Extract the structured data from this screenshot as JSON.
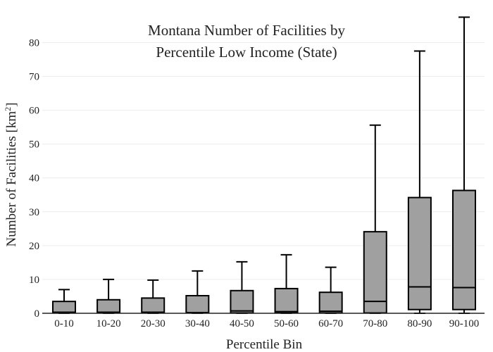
{
  "chart_data": {
    "type": "box",
    "title_lines": [
      "Montana Number of Facilities by",
      "Percentile Low Income (State)"
    ],
    "xlabel": "Percentile Bin",
    "ylabel_main": "Number of Facilities  [km",
    "ylabel_sup": "2",
    "ylabel_end": "]",
    "ylim": [
      0,
      88
    ],
    "yticks": [
      0,
      10,
      20,
      30,
      40,
      50,
      60,
      70,
      80
    ],
    "grid": true,
    "box_color": "#a0a0a0",
    "categories": [
      "0-10",
      "10-20",
      "20-30",
      "30-40",
      "40-50",
      "50-60",
      "60-70",
      "70-80",
      "80-90",
      "90-100"
    ],
    "boxes": [
      {
        "min": 0,
        "q1": 0.1,
        "median": 0.3,
        "q3": 3.5,
        "max": 7.0
      },
      {
        "min": 0,
        "q1": 0.1,
        "median": 0.3,
        "q3": 4.0,
        "max": 10.0
      },
      {
        "min": 0,
        "q1": 0.1,
        "median": 0.3,
        "q3": 4.5,
        "max": 9.8
      },
      {
        "min": 0,
        "q1": 0.1,
        "median": 0.2,
        "q3": 5.2,
        "max": 12.5
      },
      {
        "min": 0,
        "q1": 0.1,
        "median": 0.7,
        "q3": 6.7,
        "max": 15.2
      },
      {
        "min": 0,
        "q1": 0.1,
        "median": 0.5,
        "q3": 7.3,
        "max": 17.3
      },
      {
        "min": 0,
        "q1": 0.1,
        "median": 0.6,
        "q3": 6.2,
        "max": 13.6
      },
      {
        "min": 0,
        "q1": 0.1,
        "median": 3.5,
        "q3": 24.1,
        "max": 55.6
      },
      {
        "min": 0,
        "q1": 1.1,
        "median": 7.8,
        "q3": 34.2,
        "max": 77.5
      },
      {
        "min": 0,
        "q1": 1.1,
        "median": 7.6,
        "q3": 36.3,
        "max": 87.5
      }
    ]
  }
}
